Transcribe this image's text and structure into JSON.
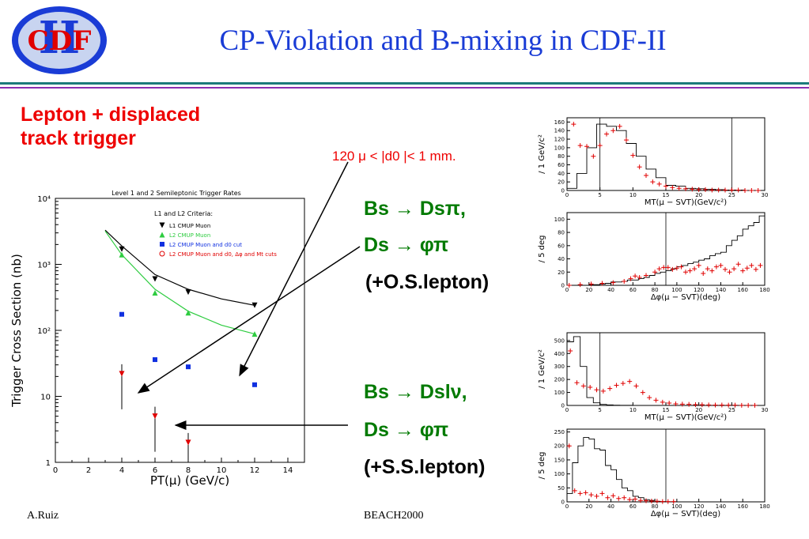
{
  "header": {
    "logo_text": "CDF",
    "logo_numeral": "II",
    "title": "CP-Violation and B-mixing in CDF-II"
  },
  "trigger": {
    "heading_line1": "Lepton + displaced",
    "heading_line2": "track trigger",
    "cut_label": "120 μ < |d0 |< 1 mm."
  },
  "decays": [
    {
      "lines": [
        "Bs → Dsπ,",
        "Ds → φπ",
        "(+O.S.lepton)"
      ]
    },
    {
      "lines": [
        "Bs → Dslν,",
        "Ds → φπ",
        "(+S.S.lepton)"
      ]
    }
  ],
  "footer": {
    "author": "A.Ruiz",
    "conference": "BEACH2000"
  },
  "colors": {
    "title": "#1a3cd6",
    "heading": "#e00000",
    "decay": "#007a00",
    "rule_top": "#1b7a7a",
    "rule_bottom": "#8a2fb0"
  },
  "chart_data": [
    {
      "type": "scatter",
      "title": "Level 1 and 2 Semileptonic Trigger Rates",
      "subtitle": "L1 and L2 Criteria:",
      "xlabel": "PT(μ) (GeV/c)",
      "ylabel": "Trigger Cross Section (nb)",
      "xlim": [
        0,
        15
      ],
      "ylim": [
        1,
        10000
      ],
      "yscale": "log",
      "x_ticks": [
        0,
        2,
        4,
        6,
        8,
        10,
        12,
        14
      ],
      "y_ticks": [
        "1",
        "10",
        "10²",
        "10³",
        "10⁴"
      ],
      "legend_position": "top-right",
      "series": [
        {
          "name": "L1 CMUP Muon",
          "color": "#000000",
          "marker": "triangle-down",
          "x": [
            4,
            6,
            8,
            12
          ],
          "y": [
            1700,
            600,
            380,
            240
          ],
          "fit": [
            [
              3,
              3300
            ],
            [
              4,
              1900
            ],
            [
              6,
              700
            ],
            [
              8,
              420
            ],
            [
              10,
              300
            ],
            [
              12,
              240
            ]
          ]
        },
        {
          "name": "L2 CMUP Muon",
          "color": "#2ecc40",
          "marker": "triangle-up",
          "x": [
            4,
            6,
            8,
            12
          ],
          "y": [
            1400,
            370,
            185,
            88
          ],
          "fit": [
            [
              3,
              3200
            ],
            [
              4,
              1400
            ],
            [
              6,
              420
            ],
            [
              8,
              195
            ],
            [
              10,
              120
            ],
            [
              12,
              88
            ]
          ]
        },
        {
          "name": "L2 CMUP Muon and d0 cut",
          "color": "#1030e0",
          "marker": "square",
          "x": [
            4,
            6,
            8,
            12
          ],
          "y": [
            175,
            36,
            28,
            15
          ]
        },
        {
          "name": "L2 CMUP Muon and d0, Δφ and Mt cuts",
          "color": "#e00000",
          "marker": "circle",
          "x": [
            4,
            6,
            8
          ],
          "y": [
            22,
            5,
            2
          ]
        }
      ]
    },
    {
      "type": "histogram",
      "xlabel": "MT(μ − SVT)(GeV/c²)",
      "ylabel": "/ 1 GeV/c²",
      "xlim": [
        0,
        30
      ],
      "ylim": [
        0,
        170
      ],
      "x_ticks": [
        0,
        5,
        10,
        15,
        20,
        25,
        30
      ],
      "y_ticks": [
        0,
        20,
        40,
        60,
        80,
        100,
        120,
        140,
        160
      ],
      "cut_lines": [
        5,
        25
      ],
      "histogram": [
        5,
        40,
        100,
        155,
        150,
        140,
        110,
        80,
        50,
        30,
        12,
        10,
        5,
        4,
        3,
        2,
        1,
        1,
        0,
        0
      ],
      "points": [
        [
          1,
          155
        ],
        [
          2,
          105
        ],
        [
          3,
          103
        ],
        [
          4,
          80
        ],
        [
          5,
          105
        ],
        [
          6,
          132
        ],
        [
          7,
          140
        ],
        [
          8,
          150
        ],
        [
          9,
          118
        ],
        [
          10,
          82
        ],
        [
          11,
          55
        ],
        [
          12,
          35
        ],
        [
          13,
          20
        ],
        [
          14,
          15
        ],
        [
          15,
          10
        ],
        [
          16,
          7
        ],
        [
          17,
          5
        ],
        [
          18,
          4
        ],
        [
          19,
          3
        ],
        [
          20,
          2
        ],
        [
          21,
          2
        ],
        [
          22,
          1
        ],
        [
          23,
          1
        ],
        [
          24,
          1
        ],
        [
          25,
          1
        ],
        [
          26,
          1
        ],
        [
          27,
          0
        ],
        [
          28,
          0
        ],
        [
          29,
          0
        ]
      ]
    },
    {
      "type": "histogram",
      "xlabel": "Δφ(μ − SVT)(deg)",
      "ylabel": "/ 5 deg",
      "xlim": [
        0,
        180
      ],
      "ylim": [
        0,
        110
      ],
      "x_ticks": [
        0,
        20,
        40,
        60,
        80,
        100,
        120,
        140,
        160,
        180
      ],
      "y_ticks": [
        0,
        20,
        40,
        60,
        80,
        100
      ],
      "cut_lines": [
        90
      ],
      "histogram": [
        0,
        0,
        0,
        0,
        1,
        1,
        2,
        3,
        5,
        5,
        6,
        8,
        8,
        10,
        12,
        15,
        18,
        20,
        22,
        25,
        28,
        30,
        33,
        35,
        38,
        40,
        45,
        48,
        50,
        60,
        68,
        75,
        85,
        90,
        95,
        105
      ],
      "points": [
        [
          2,
          0
        ],
        [
          12,
          1
        ],
        [
          22,
          2
        ],
        [
          32,
          3
        ],
        [
          42,
          4
        ],
        [
          52,
          6
        ],
        [
          58,
          10
        ],
        [
          62,
          14
        ],
        [
          66,
          12
        ],
        [
          72,
          15
        ],
        [
          80,
          20
        ],
        [
          84,
          25
        ],
        [
          88,
          27
        ],
        [
          92,
          27
        ],
        [
          96,
          24
        ],
        [
          100,
          26
        ],
        [
          104,
          28
        ],
        [
          108,
          20
        ],
        [
          112,
          22
        ],
        [
          116,
          25
        ],
        [
          120,
          30
        ],
        [
          124,
          18
        ],
        [
          128,
          25
        ],
        [
          132,
          22
        ],
        [
          136,
          28
        ],
        [
          140,
          30
        ],
        [
          144,
          24
        ],
        [
          148,
          20
        ],
        [
          152,
          25
        ],
        [
          156,
          32
        ],
        [
          160,
          22
        ],
        [
          164,
          26
        ],
        [
          168,
          30
        ],
        [
          172,
          24
        ],
        [
          176,
          30
        ]
      ]
    },
    {
      "type": "histogram",
      "xlabel": "MT(μ − SVT)(GeV/c²)",
      "ylabel": "/ 1 GeV/c²",
      "xlim": [
        0,
        30
      ],
      "ylim": [
        0,
        560
      ],
      "x_ticks": [
        0,
        5,
        10,
        15,
        20,
        25,
        30
      ],
      "y_ticks": [
        0,
        100,
        200,
        300,
        400,
        500
      ],
      "cut_lines": [
        5
      ],
      "histogram": [
        490,
        530,
        300,
        60,
        20,
        8,
        4,
        2,
        1,
        1,
        0,
        0,
        0,
        0,
        0,
        0,
        0,
        0,
        0,
        0,
        0,
        0,
        0,
        0,
        0,
        0,
        0,
        0,
        0,
        0
      ],
      "points": [
        [
          0.5,
          420
        ],
        [
          1.5,
          175
        ],
        [
          2.5,
          150
        ],
        [
          3.5,
          140
        ],
        [
          4.5,
          120
        ],
        [
          5.5,
          110
        ],
        [
          6.5,
          130
        ],
        [
          7.5,
          155
        ],
        [
          8.5,
          170
        ],
        [
          9.5,
          185
        ],
        [
          10.5,
          150
        ],
        [
          11.5,
          100
        ],
        [
          12.5,
          60
        ],
        [
          13.5,
          40
        ],
        [
          14.5,
          25
        ],
        [
          15.5,
          18
        ],
        [
          16.5,
          12
        ],
        [
          17.5,
          10
        ],
        [
          18.5,
          8
        ],
        [
          19.5,
          6
        ],
        [
          20.5,
          5
        ],
        [
          21.5,
          4
        ],
        [
          22.5,
          3
        ],
        [
          23.5,
          3
        ],
        [
          24.5,
          2
        ],
        [
          25.5,
          2
        ],
        [
          26.5,
          1
        ],
        [
          27.5,
          1
        ],
        [
          28.5,
          1
        ]
      ]
    },
    {
      "type": "histogram",
      "xlabel": "Δφ(μ − SVT)(deg)",
      "ylabel": "/ 5 deg",
      "xlim": [
        0,
        180
      ],
      "ylim": [
        0,
        260
      ],
      "x_ticks": [
        0,
        20,
        40,
        60,
        80,
        100,
        120,
        140,
        160,
        180
      ],
      "y_ticks": [
        0,
        50,
        100,
        150,
        200,
        250
      ],
      "cut_lines": [
        90
      ],
      "histogram": [
        30,
        140,
        200,
        230,
        225,
        190,
        185,
        130,
        115,
        80,
        50,
        40,
        20,
        15,
        8,
        5,
        2,
        1,
        0,
        0,
        0,
        0,
        0,
        0,
        0,
        0,
        0,
        0,
        0,
        0,
        0,
        0,
        0,
        0,
        0,
        0
      ],
      "points": [
        [
          2,
          200
        ],
        [
          7,
          40
        ],
        [
          12,
          30
        ],
        [
          17,
          33
        ],
        [
          22,
          25
        ],
        [
          27,
          20
        ],
        [
          32,
          30
        ],
        [
          37,
          15
        ],
        [
          42,
          22
        ],
        [
          47,
          12
        ],
        [
          52,
          15
        ],
        [
          57,
          8
        ],
        [
          62,
          10
        ],
        [
          67,
          5
        ],
        [
          72,
          4
        ],
        [
          77,
          3
        ],
        [
          82,
          2
        ],
        [
          87,
          1
        ],
        [
          92,
          1
        ],
        [
          97,
          1
        ]
      ]
    }
  ]
}
